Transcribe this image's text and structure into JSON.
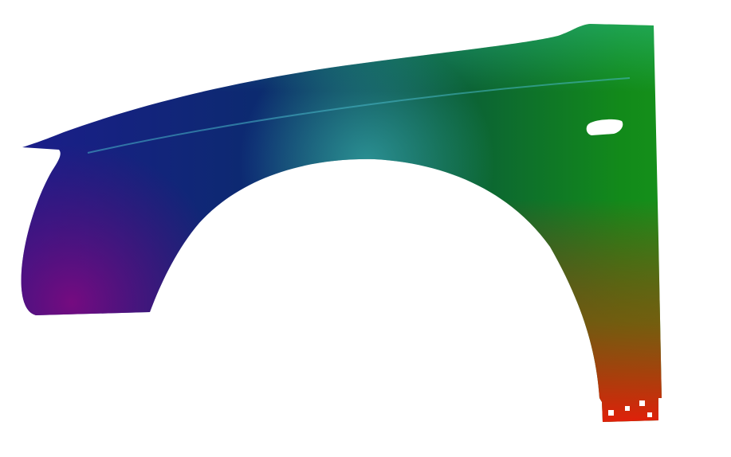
{
  "image": {
    "subject": "car-fender",
    "background_color": "#ffffff",
    "colors": {
      "top_left": "#1c1c8c",
      "bottom_left": "#5a0a78",
      "top_right": "#22b04a",
      "middle_right": "#128a1a",
      "bottom_right": "#c81e0a",
      "highlight": "#3ad0c0"
    }
  }
}
